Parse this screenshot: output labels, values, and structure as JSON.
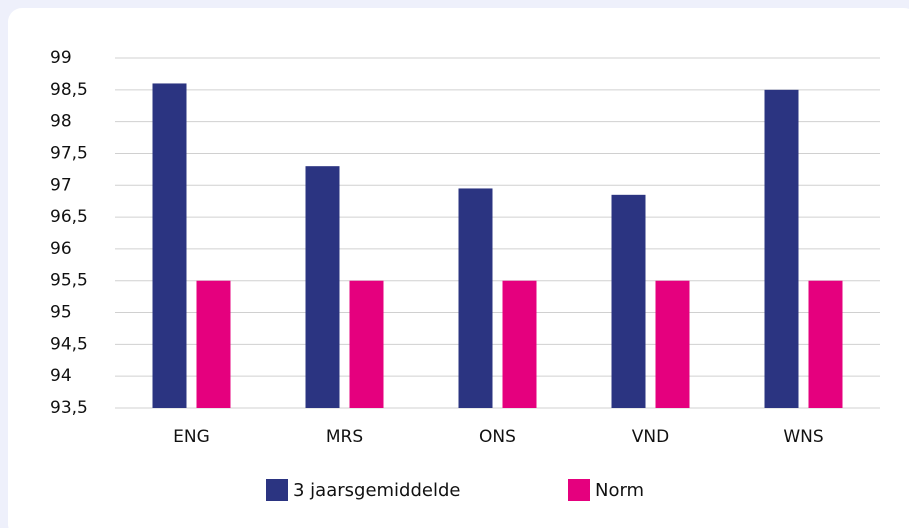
{
  "chart_data": {
    "type": "bar",
    "categories": [
      "ENG",
      "MRS",
      "ONS",
      "VND",
      "WNS"
    ],
    "series": [
      {
        "name": "3 jaarsgemiddelde",
        "color": "#2b3481",
        "values": [
          98.6,
          97.3,
          96.95,
          96.85,
          98.5
        ]
      },
      {
        "name": "Norm",
        "color": "#e5007e",
        "values": [
          95.5,
          95.5,
          95.5,
          95.5,
          95.5
        ]
      }
    ],
    "ylim": [
      93.5,
      99
    ],
    "yticks": [
      {
        "value": 93.5,
        "label": "93,5"
      },
      94,
      {
        "value": 94.5,
        "label": "94,5"
      },
      95,
      {
        "value": 95.5,
        "label": "95,5"
      },
      96,
      {
        "value": 96.5,
        "label": "96,5"
      },
      97,
      {
        "value": 97.5,
        "label": "97,5"
      },
      98,
      {
        "value": 98.5,
        "label": "98,5"
      },
      99
    ],
    "grid": true,
    "legend": "bottom"
  }
}
